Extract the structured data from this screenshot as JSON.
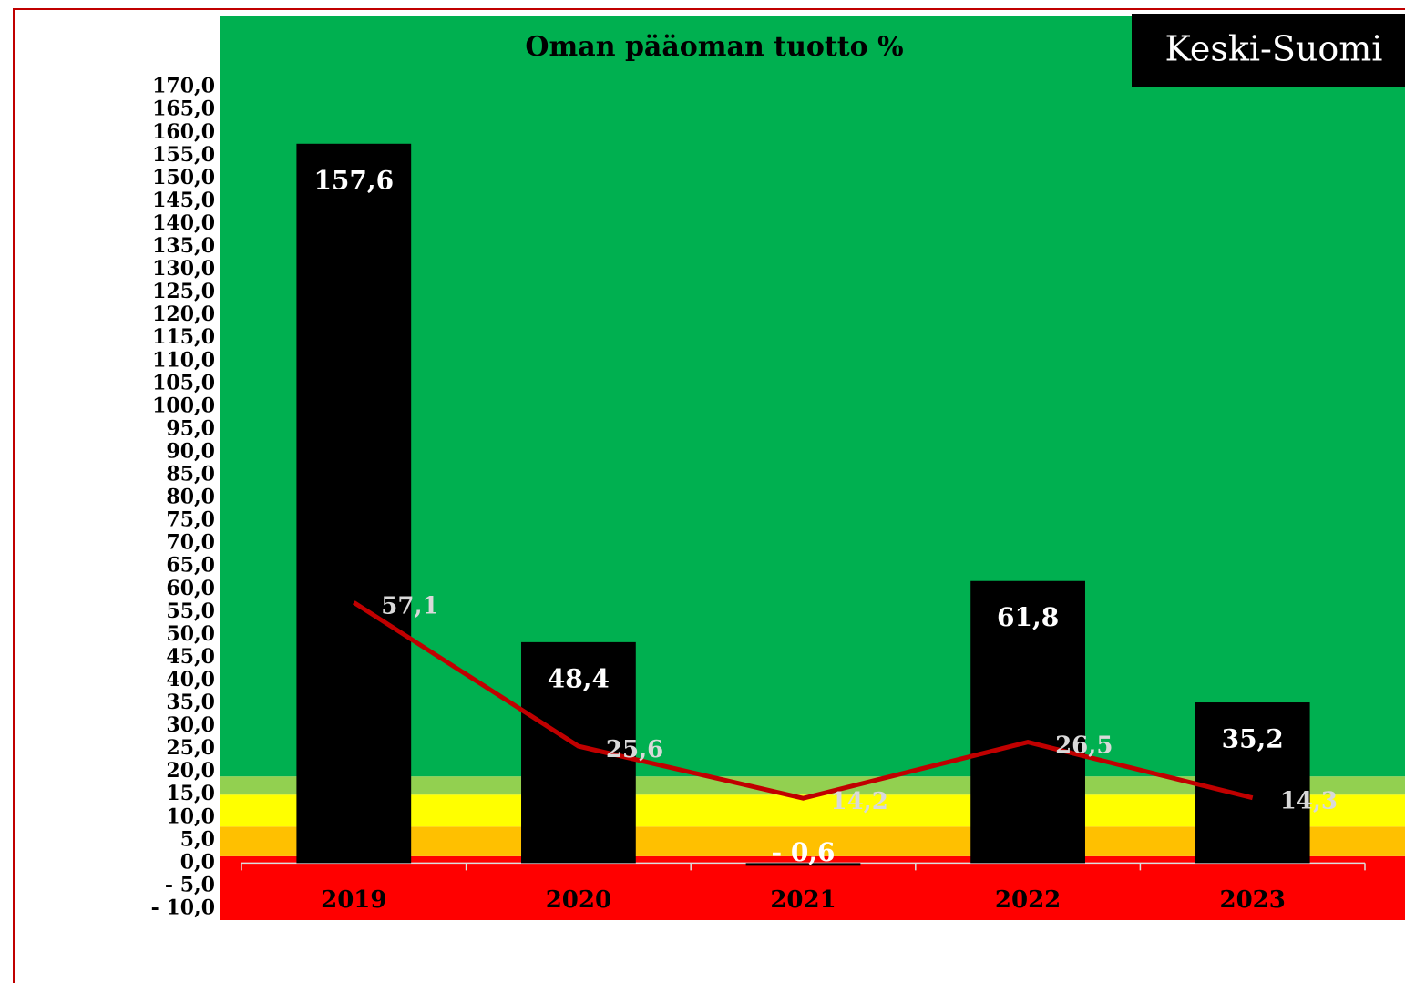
{
  "chart_data": {
    "type": "bar_line",
    "title": "Oman pääoman tuotto %",
    "badge": "Keski-Suomi",
    "categories": [
      "2019",
      "2020",
      "2021",
      "2022",
      "2023"
    ],
    "series": [
      {
        "type": "bar",
        "color": "#000000",
        "values": [
          157.6,
          48.4,
          -0.6,
          61.8,
          35.2
        ],
        "value_labels": [
          "157,6",
          "48,4",
          "- 0,6",
          "61,8",
          "35,2"
        ]
      },
      {
        "type": "line",
        "color": "#c00000",
        "values": [
          57.1,
          25.6,
          14.2,
          26.5,
          14.3
        ],
        "value_labels": [
          "57,1",
          "25,6",
          "14,2",
          "26,5",
          "14,3"
        ]
      }
    ],
    "ylim": [
      -12.5,
      185.5
    ],
    "yticks": [
      {
        "value": -10,
        "label": "- 10,0"
      },
      {
        "value": -5,
        "label": "- 5,0"
      },
      {
        "value": 0,
        "label": "0,0"
      },
      {
        "value": 5,
        "label": "5,0"
      },
      {
        "value": 10,
        "label": "10,0"
      },
      {
        "value": 15,
        "label": "15,0"
      },
      {
        "value": 20,
        "label": "20,0"
      },
      {
        "value": 25,
        "label": "25,0"
      },
      {
        "value": 30,
        "label": "30,0"
      },
      {
        "value": 35,
        "label": "35,0"
      },
      {
        "value": 40,
        "label": "40,0"
      },
      {
        "value": 45,
        "label": "45,0"
      },
      {
        "value": 50,
        "label": "50,0"
      },
      {
        "value": 55,
        "label": "55,0"
      },
      {
        "value": 60,
        "label": "60,0"
      },
      {
        "value": 65,
        "label": "65,0"
      },
      {
        "value": 70,
        "label": "70,0"
      },
      {
        "value": 75,
        "label": "75,0"
      },
      {
        "value": 80,
        "label": "80,0"
      },
      {
        "value": 85,
        "label": "85,0"
      },
      {
        "value": 90,
        "label": "90,0"
      },
      {
        "value": 95,
        "label": "95,0"
      },
      {
        "value": 100,
        "label": "100,0"
      },
      {
        "value": 105,
        "label": "105,0"
      },
      {
        "value": 110,
        "label": "110,0"
      },
      {
        "value": 115,
        "label": "115,0"
      },
      {
        "value": 120,
        "label": "120,0"
      },
      {
        "value": 125,
        "label": "125,0"
      },
      {
        "value": 130,
        "label": "130,0"
      },
      {
        "value": 135,
        "label": "135,0"
      },
      {
        "value": 140,
        "label": "140,0"
      },
      {
        "value": 145,
        "label": "145,0"
      },
      {
        "value": 150,
        "label": "150,0"
      },
      {
        "value": 155,
        "label": "155,0"
      },
      {
        "value": 160,
        "label": "160,0"
      },
      {
        "value": 165,
        "label": "165,0"
      },
      {
        "value": 170,
        "label": "170,0"
      }
    ],
    "bands": [
      {
        "from": -12.5,
        "to": 1.5,
        "color": "#ff0000"
      },
      {
        "from": 1.5,
        "to": 8,
        "color": "#ffc000"
      },
      {
        "from": 8,
        "to": 15,
        "color": "#ffff00"
      },
      {
        "from": 15,
        "to": 19,
        "color": "#92d050"
      },
      {
        "from": 19,
        "to": 185.5,
        "color": "#00b050"
      }
    ]
  }
}
